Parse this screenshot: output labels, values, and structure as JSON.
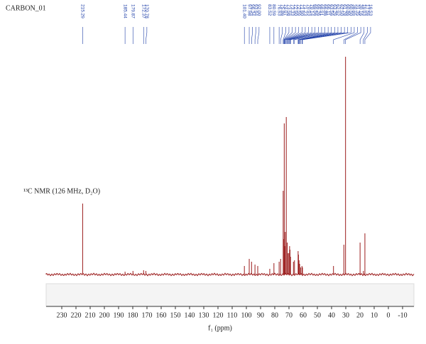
{
  "chart_data": {
    "type": "spectrum",
    "title": "CARBON_01",
    "annotation": "¹³C NMR (126 MHz, D₂O)",
    "x_label": "f₁ (ppm)",
    "x": [
      215.29,
      185.44,
      179.87,
      172.37,
      170.78,
      101.4,
      97.98,
      96.34,
      93.94,
      92.0,
      83.52,
      80.59,
      76.93,
      75.86,
      74.07,
      73.58,
      73.33,
      72.9,
      72.59,
      71.9,
      71.23,
      70.93,
      70.14,
      69.56,
      69.26,
      68.91,
      66.86,
      66.11,
      63.56,
      63.29,
      62.92,
      62.5,
      61.78,
      60.86,
      60.5,
      38.65,
      31.35,
      30.16,
      19.93,
      17.59,
      16.53
    ],
    "peak_labels": [
      "215.29",
      "185.44",
      "179.87",
      "172.37",
      "170.78",
      "101.40",
      "97.98",
      "96.34",
      "93.94",
      "92.00",
      "83.52",
      "80.59",
      "76.93",
      "75.86",
      "74.07",
      "73.58",
      "73.33",
      "72.90",
      "72.59",
      "71.90",
      "71.23",
      "70.93",
      "70.14",
      "69.56",
      "69.26",
      "68.91",
      "66.86",
      "66.11",
      "63.56",
      "63.29",
      "62.92",
      "62.50",
      "61.78",
      "60.86",
      "60.50",
      "38.65",
      "31.35",
      "30.16",
      "19.93",
      "17.59",
      "16.53"
    ],
    "values": [
      100,
      4,
      5,
      6,
      5,
      12,
      22,
      18,
      14,
      12,
      8,
      16,
      18,
      22,
      118,
      50,
      213,
      40,
      60,
      222,
      45,
      30,
      30,
      40,
      35,
      25,
      18,
      20,
      33,
      28,
      20,
      15,
      10,
      12,
      10,
      12,
      42,
      307,
      45,
      5,
      58
    ],
    "color": "#9b1c1c",
    "label_color": "#1f3fa8",
    "xlim": [
      241,
      -18
    ],
    "ylim": [
      -45,
      320
    ],
    "xticks": [
      230,
      220,
      210,
      200,
      190,
      180,
      170,
      160,
      150,
      140,
      130,
      120,
      110,
      100,
      90,
      80,
      70,
      60,
      50,
      40,
      30,
      20,
      10,
      0,
      -10
    ]
  }
}
